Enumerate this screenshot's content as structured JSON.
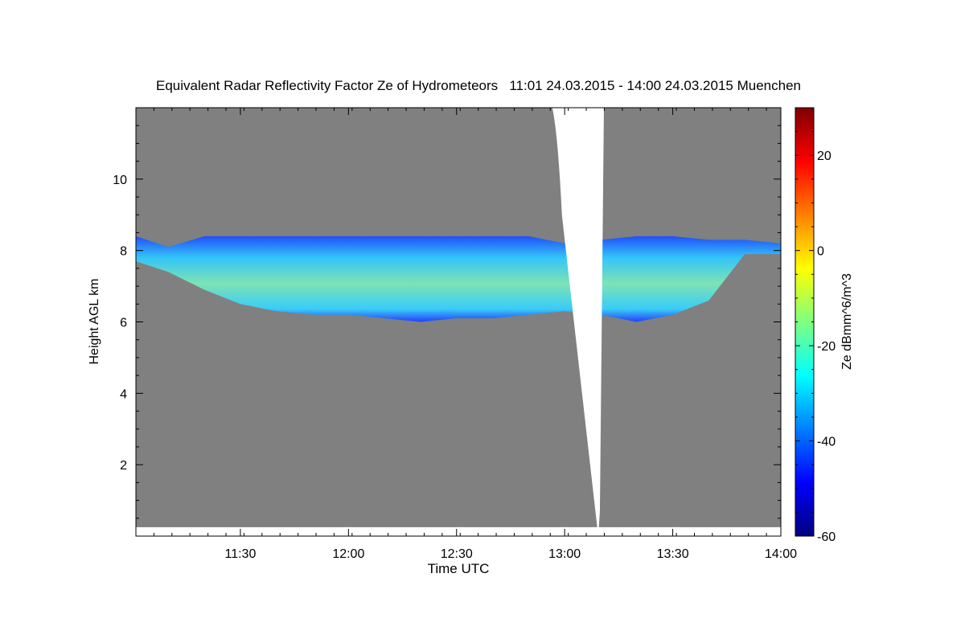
{
  "chart_data": {
    "type": "heatmap",
    "title": "Equivalent Radar Reflectivity Factor Ze of Hydrometeors   11:01 24.03.2015 - 14:00 24.03.2015 Muenchen",
    "xlabel": "Time UTC",
    "ylabel": "Height AGL km",
    "x_range": [
      "11:01",
      "14:00"
    ],
    "x_ticks": [
      "11:30",
      "12:00",
      "12:30",
      "13:00",
      "13:30",
      "14:00"
    ],
    "y_range": [
      0,
      12
    ],
    "y_ticks": [
      "2",
      "4",
      "6",
      "8",
      "10"
    ],
    "colorbar": {
      "label": "Ze dBmm^6/m^3",
      "range": [
        -60,
        30
      ],
      "ticks": [
        "20",
        "0",
        "-20",
        "-40",
        "-60"
      ],
      "colormap": "jet"
    },
    "background_color": "#808080",
    "no_data_color": "#ffffff",
    "cloud_layer": {
      "description": "Ice cloud layer of weak reflectivity",
      "times": [
        "11:01",
        "11:10",
        "11:20",
        "11:30",
        "11:40",
        "11:50",
        "12:00",
        "12:10",
        "12:20",
        "12:30",
        "12:40",
        "12:50",
        "13:00",
        "13:10",
        "13:20",
        "13:30",
        "13:40",
        "13:50",
        "14:00"
      ],
      "top_km": [
        8.4,
        8.1,
        8.4,
        8.4,
        8.4,
        8.4,
        8.4,
        8.4,
        8.4,
        8.4,
        8.4,
        8.4,
        8.2,
        8.3,
        8.4,
        8.4,
        8.3,
        8.3,
        8.2
      ],
      "base_km": [
        7.7,
        7.4,
        6.9,
        6.5,
        6.3,
        6.2,
        6.2,
        6.1,
        6.0,
        6.1,
        6.1,
        6.2,
        6.3,
        6.2,
        6.0,
        6.2,
        6.6,
        7.9,
        7.9
      ],
      "core_dBZ": [
        -40,
        -38,
        -35,
        -33,
        -30,
        -26,
        -24,
        -22,
        -20,
        -20,
        -22,
        -26,
        -32,
        -34,
        -32,
        -34,
        -38,
        -42,
        -44
      ]
    },
    "data_gap": {
      "start_time": "12:57",
      "end_time": "13:10",
      "bottom_km": 0.0
    }
  }
}
